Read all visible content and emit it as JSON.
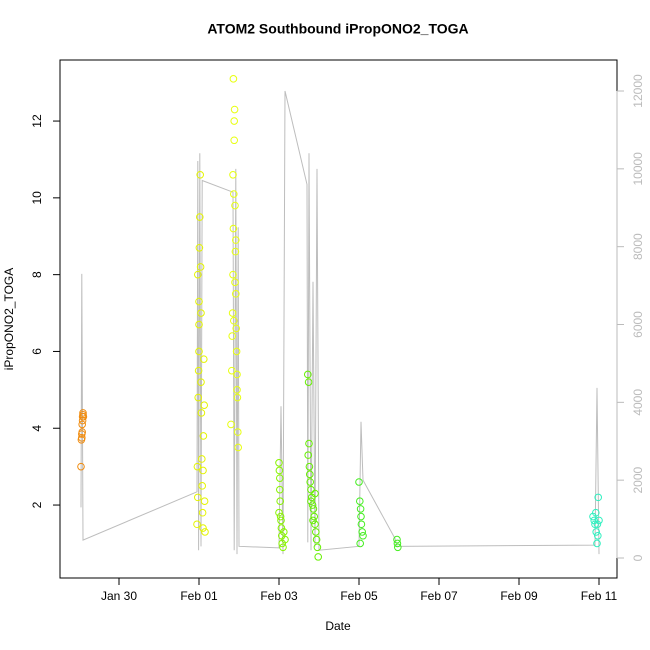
{
  "chart_data": {
    "type": "scatter",
    "title": "ATOM2 Southbound iPropONO2_TOGA",
    "x_label": "Date",
    "y_label": "iPropONO2_TOGA",
    "xlim": [
      -1.475,
      12.45
    ],
    "xticks": [
      {
        "value": 0,
        "label": "Jan 30"
      },
      {
        "value": 2,
        "label": "Feb 01"
      },
      {
        "value": 4,
        "label": "Feb 03"
      },
      {
        "value": 6,
        "label": "Feb 05"
      },
      {
        "value": 8,
        "label": "Feb 07"
      },
      {
        "value": 10,
        "label": "Feb 09"
      },
      {
        "value": 12,
        "label": "Feb 11"
      }
    ],
    "ylim": [
      0.1,
      13.59
    ],
    "yticks": [
      2,
      4,
      6,
      8,
      10,
      12
    ],
    "y2lim": [
      -514,
      12797
    ],
    "y2ticks": [
      0,
      2000,
      4000,
      6000,
      8000,
      10000,
      12000
    ],
    "series": [
      {
        "type": "line",
        "axis": "y2",
        "color": "#bdbdbd",
        "x": [
          -0.95,
          -0.93,
          -0.9,
          1.95,
          1.97,
          1.99,
          2.02,
          2.05,
          2.08,
          2.85,
          2.88,
          2.92,
          2.95,
          2.98,
          3.0,
          4.0,
          4.05,
          4.1,
          4.15,
          4.7,
          4.72,
          4.75,
          4.8,
          4.85,
          4.9,
          4.95,
          5.0,
          6.0,
          6.05,
          6.1,
          6.9,
          6.95,
          11.9,
          11.95,
          12.0
        ],
        "values": [
          1300,
          7300,
          460,
          1700,
          10200,
          200,
          10400,
          300,
          9700,
          9400,
          200,
          10000,
          100,
          8500,
          300,
          260,
          3900,
          100,
          12000,
          9600,
          400,
          10400,
          200,
          7100,
          300,
          10000,
          200,
          300,
          3500,
          2000,
          500,
          300,
          330,
          4370,
          100
        ]
      },
      {
        "type": "scatter",
        "color": "#f08c10",
        "x": [
          -0.95,
          -0.94,
          -0.93,
          -0.93,
          -0.92,
          -0.92,
          -0.91,
          -0.91,
          -0.9,
          -0.9,
          -0.89
        ],
        "values": [
          3.0,
          3.7,
          3.75,
          3.85,
          3.9,
          4.1,
          4.2,
          4.3,
          4.35,
          4.4,
          4.3
        ]
      },
      {
        "type": "scatter",
        "color": "#e4f400",
        "x": [
          1.95,
          1.97,
          1.96,
          1.98,
          1.99,
          2.0,
          2.0,
          2.01,
          2.02,
          2.03,
          2.04,
          2.05,
          2.05,
          2.06,
          2.07,
          2.08,
          2.09,
          2.1,
          2.1,
          2.11,
          2.12,
          2.13,
          2.14,
          2.15,
          2.0,
          1.97
        ],
        "values": [
          1.5,
          2.2,
          3.0,
          4.8,
          5.5,
          6.0,
          7.3,
          8.7,
          9.5,
          10.6,
          8.2,
          7.0,
          5.2,
          4.4,
          3.2,
          2.5,
          1.8,
          1.4,
          2.9,
          3.8,
          5.8,
          4.6,
          2.1,
          1.3,
          6.7,
          8.0
        ]
      },
      {
        "type": "scatter",
        "color": "#e8ff10",
        "x": [
          2.8,
          2.82,
          2.83,
          2.84,
          2.85,
          2.86,
          2.87,
          2.88,
          2.88,
          2.89,
          2.86,
          2.9,
          2.91,
          2.92,
          2.93,
          2.94,
          2.95,
          2.96,
          2.97,
          2.98,
          2.9,
          2.87,
          2.92,
          2.85,
          2.95
        ],
        "values": [
          4.1,
          5.5,
          6.4,
          7.0,
          8.0,
          9.2,
          10.1,
          11.5,
          12.0,
          12.3,
          13.1,
          9.8,
          8.6,
          7.5,
          6.6,
          6.0,
          5.4,
          4.8,
          3.9,
          3.5,
          7.8,
          6.8,
          8.9,
          10.6,
          5.0
        ]
      },
      {
        "type": "scatter",
        "color": "#88f400",
        "x": [
          4.0,
          4.01,
          4.02,
          4.03,
          4.0,
          4.05,
          4.06,
          4.07,
          4.08,
          4.1,
          4.12,
          4.04,
          4.02,
          4.15
        ],
        "values": [
          3.1,
          2.9,
          2.4,
          2.1,
          1.8,
          1.6,
          1.4,
          1.2,
          1.0,
          0.9,
          1.3,
          1.7,
          2.7,
          1.1
        ]
      },
      {
        "type": "scatter",
        "color": "#66f000",
        "x": [
          4.72,
          4.74,
          4.73,
          4.76,
          4.77,
          4.78,
          4.8,
          4.82,
          4.84,
          4.86,
          4.88,
          4.9,
          4.92,
          4.94,
          4.96,
          4.98,
          4.75,
          4.8,
          4.85,
          4.9
        ],
        "values": [
          5.4,
          5.2,
          3.3,
          3.0,
          2.8,
          2.6,
          2.4,
          2.2,
          2.0,
          1.9,
          1.7,
          1.5,
          1.3,
          1.1,
          0.9,
          0.65,
          3.6,
          2.1,
          1.6,
          2.3
        ]
      },
      {
        "type": "scatter",
        "color": "#44ee20",
        "x": [
          6.0,
          6.02,
          6.04,
          6.05,
          6.06,
          6.08,
          6.1,
          6.03,
          6.95,
          6.97,
          6.96
        ],
        "values": [
          2.6,
          2.1,
          1.9,
          1.7,
          1.5,
          1.3,
          1.2,
          1.0,
          1.1,
          0.9,
          1.0
        ]
      },
      {
        "type": "scatter",
        "color": "#30f0c0",
        "x": [
          11.85,
          11.88,
          11.9,
          11.93,
          11.95,
          11.97,
          12.0,
          11.98,
          11.92,
          11.96
        ],
        "values": [
          1.7,
          1.6,
          1.5,
          1.3,
          1.0,
          1.2,
          1.6,
          2.2,
          1.8,
          1.5
        ]
      }
    ]
  }
}
